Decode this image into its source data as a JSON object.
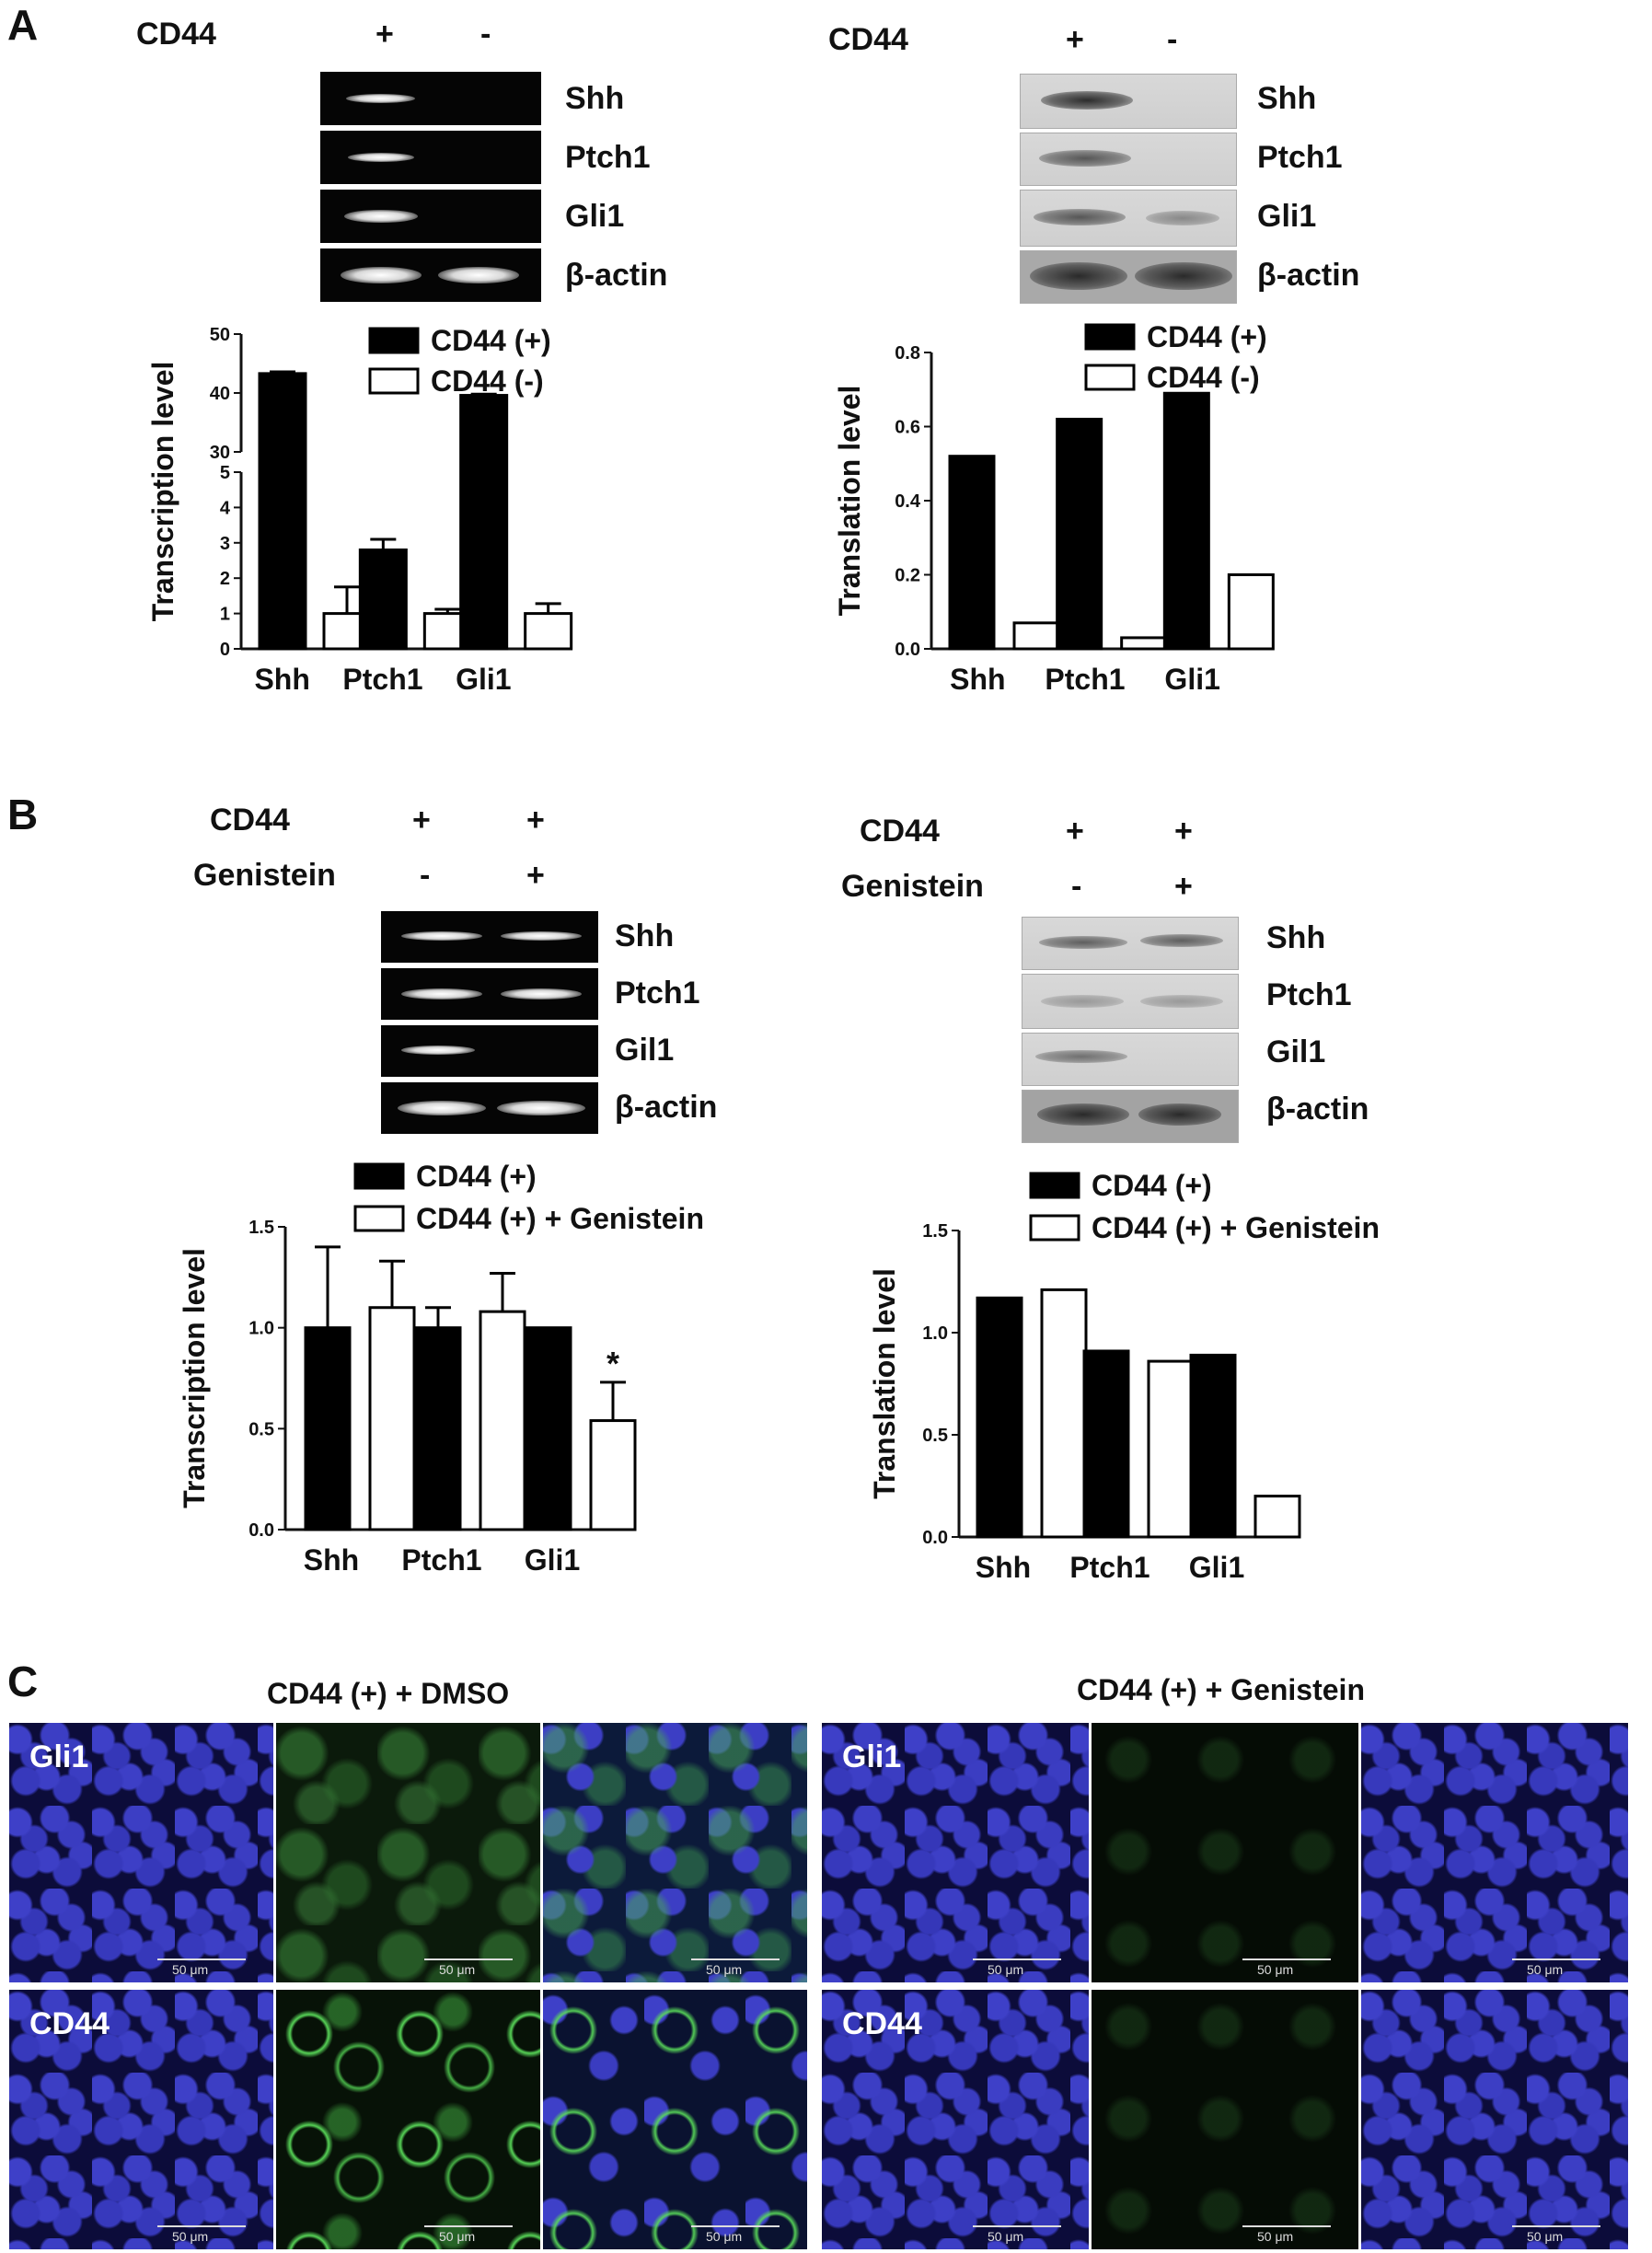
{
  "panelA": {
    "letter": "A",
    "left": {
      "row_label": "CD44",
      "lanes": [
        "+",
        "-"
      ],
      "genes": [
        "Shh",
        "Ptch1",
        "Gli1",
        "β-actin"
      ]
    },
    "right": {
      "row_label": "CD44",
      "lanes": [
        "+",
        "-"
      ],
      "genes": [
        "Shh",
        "Ptch1",
        "Gli1",
        "β-actin"
      ]
    }
  },
  "panelB": {
    "letter": "B",
    "left": {
      "row1_label": "CD44",
      "row1_lanes": [
        "+",
        "+"
      ],
      "row2_label": "Genistein",
      "row2_lanes": [
        "-",
        "+"
      ],
      "genes": [
        "Shh",
        "Ptch1",
        "Gil1",
        "β-actin"
      ]
    },
    "right": {
      "row1_label": "CD44",
      "row1_lanes": [
        "+",
        "+"
      ],
      "row2_label": "Genistein",
      "row2_lanes": [
        "-",
        "+"
      ],
      "genes": [
        "Shh",
        "Ptch1",
        "Gil1",
        "β-actin"
      ]
    }
  },
  "panelC": {
    "letter": "C",
    "left_title": "CD44 (+) + DMSO",
    "right_title": "CD44 (+) + Genistein",
    "row_labels": [
      "Gli1",
      "CD44"
    ],
    "scale": "50 μm"
  },
  "chart_data": [
    {
      "type": "bar",
      "categories": [
        "Shh",
        "Ptch1",
        "Gli1"
      ],
      "series": [
        {
          "name": "CD44 (+)",
          "values": [
            43.3,
            2.8,
            39.6
          ],
          "errors": [
            0.3,
            0.3,
            0.2
          ]
        },
        {
          "name": "CD44 (-)",
          "values": [
            1.0,
            1.0,
            1.0
          ],
          "errors": [
            0.75,
            0.12,
            0.28
          ]
        }
      ],
      "ylabel": "Transcription level",
      "broken_axis": {
        "lower": [
          0,
          5
        ],
        "upper": [
          30,
          50
        ]
      },
      "yticks_lower": [
        "0",
        "1",
        "2",
        "3",
        "4",
        "5"
      ],
      "yticks_upper": [
        "30",
        "40",
        "50"
      ],
      "legend": "top"
    },
    {
      "type": "bar",
      "categories": [
        "Shh",
        "Ptch1",
        "Gli1"
      ],
      "series": [
        {
          "name": "CD44 (+)",
          "values": [
            0.52,
            0.62,
            0.69
          ]
        },
        {
          "name": "CD44 (-)",
          "values": [
            0.07,
            0.03,
            0.2
          ]
        }
      ],
      "ylabel": "Translation level",
      "ylim": [
        0,
        0.8
      ],
      "yticks": [
        "0.0",
        "0.2",
        "0.4",
        "0.6",
        "0.8"
      ],
      "legend": "top"
    },
    {
      "type": "bar",
      "categories": [
        "Shh",
        "Ptch1",
        "Gli1"
      ],
      "series": [
        {
          "name": "CD44 (+)",
          "values": [
            1.0,
            1.0,
            1.0
          ],
          "errors": [
            0.4,
            0.1,
            0.0
          ]
        },
        {
          "name": "CD44 (+) + Genistein",
          "values": [
            1.1,
            1.08,
            0.54
          ],
          "errors": [
            0.23,
            0.19,
            0.19
          ]
        }
      ],
      "annotations": [
        {
          "category": "Gli1",
          "series": "CD44 (+) + Genistein",
          "text": "*"
        }
      ],
      "ylabel": "Transcription level",
      "ylim": [
        0,
        1.5
      ],
      "yticks": [
        "0.0",
        "0.5",
        "1.0",
        "1.5"
      ],
      "legend": "top"
    },
    {
      "type": "bar",
      "categories": [
        "Shh",
        "Ptch1",
        "Gli1"
      ],
      "series": [
        {
          "name": "CD44 (+)",
          "values": [
            1.17,
            0.91,
            0.89
          ]
        },
        {
          "name": "CD44 (+) + Genistein",
          "values": [
            1.21,
            0.86,
            0.2
          ]
        }
      ],
      "ylabel": "Translation level",
      "ylim": [
        0,
        1.5
      ],
      "yticks": [
        "0.0",
        "0.5",
        "1.0",
        "1.5"
      ],
      "legend": "top"
    }
  ]
}
